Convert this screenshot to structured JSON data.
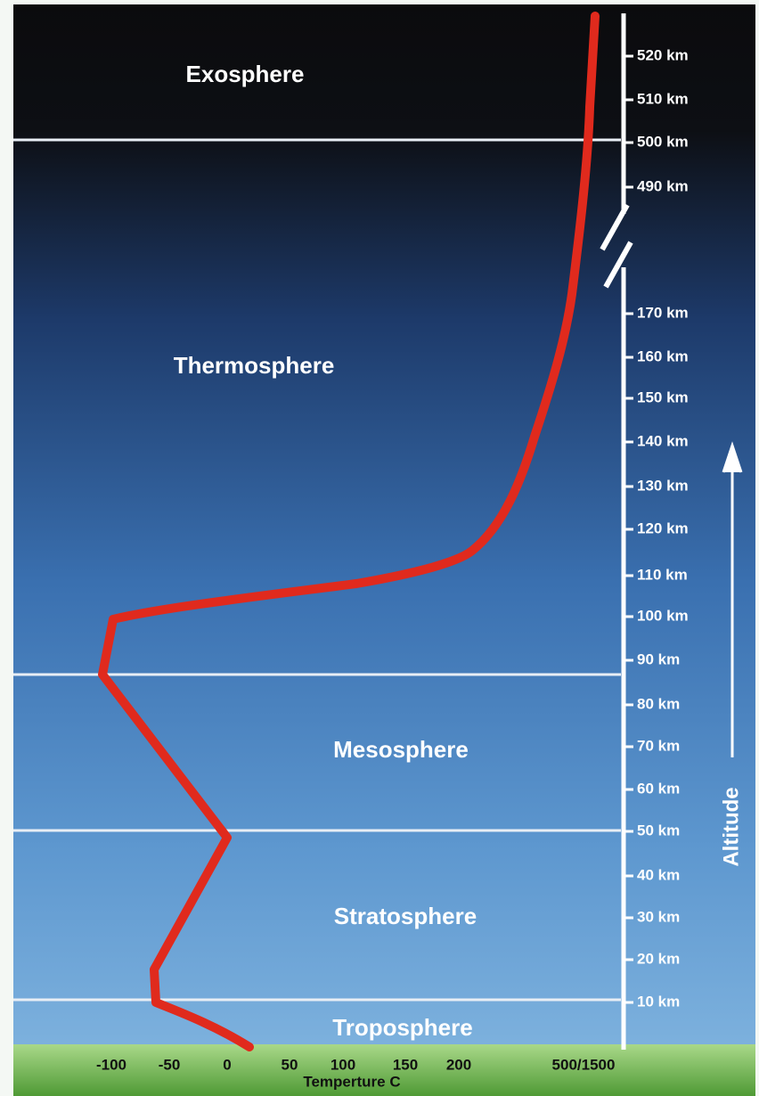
{
  "layers": [
    "Exosphere",
    "Thermosphere",
    "Mesosphere",
    "Stratosphere",
    "Troposphere"
  ],
  "y_axis": {
    "label": "Altitude",
    "ticks": [
      "520 km",
      "510 km",
      "500 km",
      "490 km",
      "170 km",
      "160 km",
      "150 km",
      "140 km",
      "130 km",
      "120 km",
      "110 km",
      "100 km",
      "90 km",
      "80 km",
      "70 km",
      "60 km",
      "50 km",
      "40 km",
      "30 km",
      "20 km",
      "10 km"
    ]
  },
  "x_axis": {
    "label": "Temperture C",
    "ticks": [
      "-100",
      "-50",
      "0",
      "50",
      "100",
      "150",
      "200",
      "500/1500"
    ]
  }
}
